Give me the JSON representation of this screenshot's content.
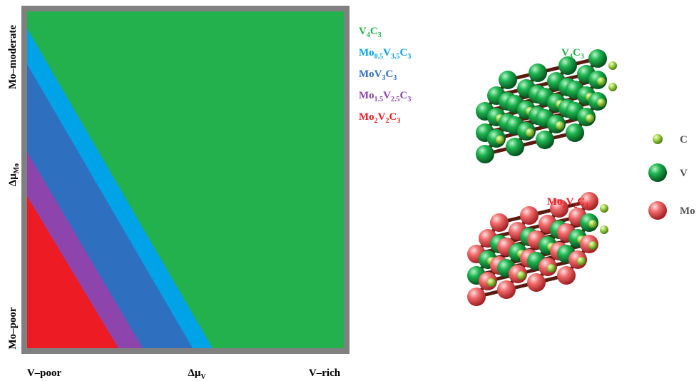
{
  "diagram": {
    "phases": [
      {
        "parts": [
          "V",
          "4",
          "C",
          "3"
        ],
        "color": "#22b14c"
      },
      {
        "parts": [
          "Mo",
          "0.5",
          "V",
          "3.5",
          "C",
          "3"
        ],
        "color": "#00a2e8"
      },
      {
        "parts": [
          "MoV",
          "3",
          "C",
          "3"
        ],
        "color": "#2f6fc0"
      },
      {
        "parts": [
          "Mo",
          "1.5",
          "V",
          "2.5",
          "C",
          "3"
        ],
        "color": "#8e44ad"
      },
      {
        "parts": [
          "Mo",
          "2",
          "V",
          "2",
          "C",
          "3"
        ],
        "color": "#ed1c24"
      }
    ],
    "y_axis": {
      "top": "Mo–moderate",
      "middle": [
        "Δμ",
        "Mo"
      ],
      "bottom": "Mo–poor"
    },
    "x_axis": {
      "left": "V–poor",
      "middle": [
        "Δμ",
        "V"
      ],
      "right": "V–rich"
    },
    "structures": [
      {
        "parts": [
          "V",
          "4",
          "C",
          "3"
        ],
        "color": "#22b14c"
      },
      {
        "parts": [
          "Mo",
          "2",
          "V",
          "2",
          "C",
          "3"
        ],
        "color": "#ed1c24"
      }
    ],
    "atoms": [
      "C",
      "V",
      "Mo"
    ]
  }
}
